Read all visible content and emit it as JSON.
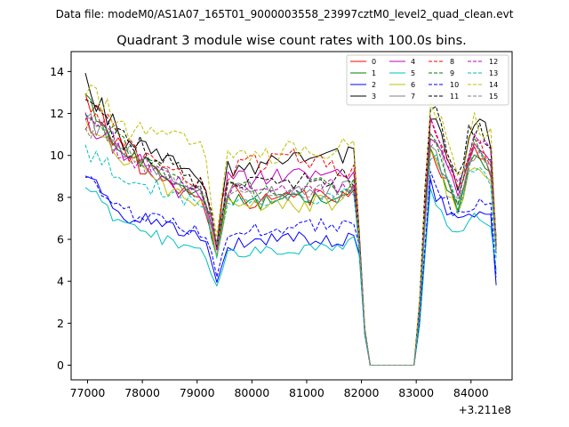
{
  "header": {
    "data_file_text": "Data file: modeM0/AS1A07_165T01_9000003558_23997cztM0_level2_quad_clean.evt"
  },
  "chart_data": {
    "type": "line",
    "title": "Quadrant 3 module wise count rates with 100.0s bins.",
    "xlabel": "",
    "ylabel": "",
    "x_offset_label": "+3.211e8",
    "xlim": [
      76700,
      84750
    ],
    "ylim": [
      -0.7,
      14.95
    ],
    "xticks": [
      77000,
      78000,
      79000,
      80000,
      81000,
      82000,
      83000,
      84000
    ],
    "yticks": [
      0,
      2,
      4,
      6,
      8,
      10,
      12,
      14
    ],
    "grid": false,
    "legend_position": "top-right",
    "x_range": [
      76960,
      84460
    ],
    "bin_width": 100,
    "gap_interval": [
      82100,
      83000
    ],
    "series": [
      {
        "name": "0",
        "color": "#ff0000",
        "dash": "solid",
        "anchors": [
          12.9,
          11.6,
          10.0,
          9.2,
          8.2,
          8.0,
          6.9,
          5.0,
          8.4,
          7.8,
          7.9,
          8.0,
          8.1,
          8.6,
          6.2,
          0.0,
          0.0,
          10.6,
          8.9,
          7.3,
          10.3,
          9.6,
          9.0,
          5.5
        ]
      },
      {
        "name": "1",
        "color": "#008000",
        "dash": "solid",
        "anchors": [
          12.6,
          11.4,
          10.2,
          9.4,
          8.5,
          8.1,
          7.1,
          5.0,
          8.2,
          7.7,
          7.8,
          7.9,
          8.0,
          8.4,
          6.1,
          0.0,
          0.0,
          10.4,
          8.7,
          7.2,
          10.1,
          9.4,
          9.2,
          5.4
        ]
      },
      {
        "name": "2",
        "color": "#0000ff",
        "dash": "solid",
        "anchors": [
          9.1,
          8.3,
          7.1,
          6.9,
          6.3,
          6.0,
          5.4,
          4.0,
          5.7,
          5.9,
          6.1,
          6.0,
          5.8,
          6.2,
          5.7,
          0.0,
          0.0,
          8.6,
          7.4,
          6.6,
          7.5,
          7.2,
          7.0,
          3.9
        ]
      },
      {
        "name": "3",
        "color": "#000000",
        "dash": "solid",
        "anchors": [
          13.4,
          12.4,
          10.6,
          10.1,
          9.4,
          8.7,
          8.2,
          5.7,
          9.4,
          9.5,
          9.6,
          9.8,
          9.9,
          10.2,
          6.5,
          0.0,
          0.0,
          11.9,
          10.1,
          8.3,
          11.1,
          11.3,
          10.6,
          6.0
        ]
      },
      {
        "name": "4",
        "color": "#bf00bf",
        "dash": "solid",
        "anchors": [
          11.7,
          11.0,
          9.9,
          9.3,
          8.3,
          8.0,
          7.3,
          5.3,
          8.9,
          8.8,
          9.0,
          9.1,
          9.2,
          9.1,
          6.3,
          0.0,
          0.0,
          11.2,
          9.4,
          7.8,
          10.4,
          10.2,
          9.6,
          5.6
        ]
      },
      {
        "name": "5",
        "color": "#00bfbf",
        "dash": "solid",
        "anchors": [
          8.6,
          7.6,
          6.5,
          6.2,
          5.6,
          5.4,
          5.0,
          3.6,
          5.3,
          5.4,
          5.5,
          5.6,
          5.7,
          5.9,
          5.6,
          0.0,
          0.0,
          8.1,
          6.9,
          6.0,
          7.0,
          6.8,
          6.5,
          4.6
        ]
      },
      {
        "name": "6",
        "color": "#bfbf00",
        "dash": "solid",
        "anchors": [
          11.4,
          10.8,
          9.8,
          9.0,
          8.0,
          7.7,
          7.1,
          5.1,
          7.8,
          7.5,
          7.6,
          7.7,
          7.8,
          8.3,
          6.2,
          0.0,
          0.0,
          10.2,
          8.5,
          7.0,
          9.6,
          9.3,
          8.8,
          5.2
        ]
      },
      {
        "name": "7",
        "color": "#808080",
        "dash": "solid",
        "anchors": [
          12.0,
          11.3,
          10.3,
          9.6,
          8.6,
          8.2,
          7.4,
          5.4,
          8.5,
          8.1,
          8.2,
          8.3,
          8.4,
          8.5,
          6.2,
          0.0,
          0.0,
          10.8,
          9.1,
          7.5,
          10.0,
          9.8,
          9.3,
          5.5
        ]
      },
      {
        "name": "8",
        "color": "#ff0000",
        "dash": "dashed",
        "anchors": [
          11.0,
          11.7,
          10.7,
          9.6,
          9.2,
          8.6,
          7.9,
          5.8,
          9.2,
          9.6,
          9.9,
          9.7,
          9.4,
          9.2,
          6.4,
          0.0,
          0.0,
          11.3,
          9.6,
          8.0,
          10.8,
          10.3,
          9.8,
          5.7
        ]
      },
      {
        "name": "9",
        "color": "#008000",
        "dash": "dashed",
        "anchors": [
          12.2,
          11.4,
          10.4,
          9.5,
          8.9,
          8.3,
          7.6,
          5.5,
          8.5,
          8.3,
          8.4,
          8.5,
          8.6,
          8.7,
          6.2,
          0.0,
          0.0,
          11.0,
          9.3,
          7.7,
          10.5,
          10.0,
          9.5,
          5.6
        ]
      },
      {
        "name": "10",
        "color": "#0000ff",
        "dash": "dashed",
        "anchors": [
          8.8,
          8.1,
          7.3,
          7.0,
          6.6,
          6.3,
          5.8,
          4.2,
          6.1,
          6.4,
          6.6,
          6.7,
          6.6,
          6.7,
          6.0,
          0.0,
          0.0,
          8.9,
          7.7,
          6.9,
          7.8,
          7.6,
          7.4,
          4.4
        ]
      },
      {
        "name": "11",
        "color": "#000000",
        "dash": "dashed",
        "anchors": [
          12.4,
          11.9,
          10.9,
          10.0,
          9.3,
          8.6,
          8.0,
          5.6,
          8.8,
          8.6,
          8.7,
          8.8,
          8.9,
          9.0,
          6.3,
          0.0,
          0.0,
          12.6,
          10.4,
          8.6,
          11.6,
          11.0,
          10.4,
          5.9
        ]
      },
      {
        "name": "12",
        "color": "#bf00bf",
        "dash": "dashed",
        "anchors": [
          11.5,
          11.2,
          10.0,
          9.3,
          8.6,
          8.1,
          7.5,
          5.4,
          8.3,
          8.2,
          8.3,
          8.4,
          8.5,
          8.5,
          6.2,
          0.0,
          0.0,
          11.5,
          9.7,
          8.1,
          10.8,
          10.6,
          9.9,
          5.7
        ]
      },
      {
        "name": "13",
        "color": "#00bfbf",
        "dash": "dashed",
        "anchors": [
          10.3,
          9.6,
          8.9,
          8.5,
          8.0,
          7.6,
          7.0,
          5.2,
          7.8,
          7.8,
          7.9,
          8.0,
          8.1,
          8.2,
          6.1,
          0.0,
          0.0,
          10.3,
          8.8,
          7.4,
          9.6,
          9.4,
          8.9,
          5.2
        ]
      },
      {
        "name": "14",
        "color": "#bfbf00",
        "dash": "dashed",
        "anchors": [
          13.3,
          12.6,
          11.3,
          10.8,
          10.6,
          10.3,
          9.1,
          6.2,
          9.8,
          10.0,
          10.2,
          10.2,
          10.3,
          10.4,
          6.6,
          0.0,
          0.0,
          12.9,
          10.6,
          8.8,
          11.8,
          11.4,
          10.9,
          6.1
        ]
      },
      {
        "name": "15",
        "color": "#808080",
        "dash": "dashed",
        "anchors": [
          11.6,
          11.0,
          10.0,
          9.2,
          8.7,
          8.2,
          7.6,
          5.5,
          8.3,
          8.0,
          8.1,
          8.2,
          8.3,
          8.4,
          6.2,
          0.0,
          0.0,
          10.9,
          9.2,
          7.6,
          10.2,
          10.0,
          9.4,
          5.5
        ]
      }
    ],
    "anchor_x": [
      76960,
      77250,
      77700,
      78200,
      78700,
      79100,
      79200,
      79360,
      79550,
      80000,
      80600,
      81100,
      81600,
      81860,
      81950,
      82100,
      83000,
      83250,
      83550,
      83800,
      84000,
      84200,
      84380,
      84460
    ]
  }
}
